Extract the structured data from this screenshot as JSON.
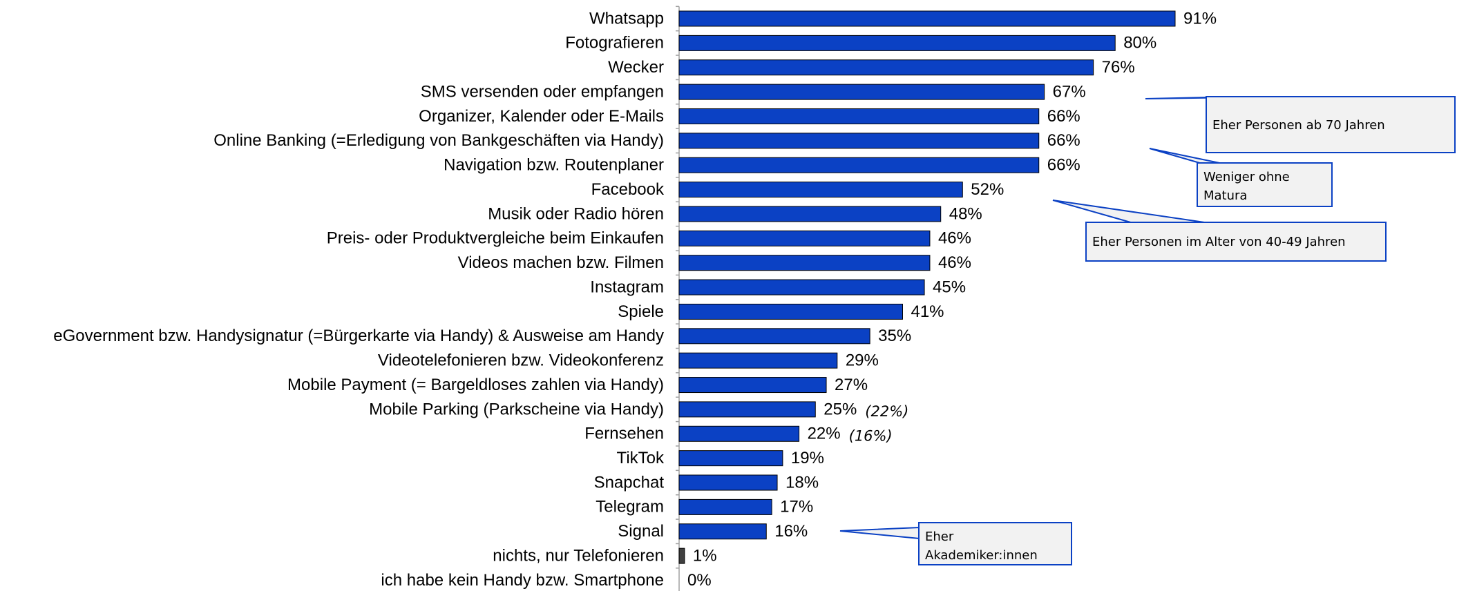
{
  "chart_data": {
    "type": "barh",
    "categories": [
      "Whatsapp",
      "Fotografieren",
      "Wecker",
      "SMS versenden oder empfangen",
      "Organizer, Kalender oder E-Mails",
      "Online Banking (=Erledigung von Bankgeschäften via Handy)",
      "Navigation bzw. Routenplaner",
      "Facebook",
      "Musik oder Radio hören",
      "Preis- oder Produktvergleiche beim Einkaufen",
      "Videos machen bzw. Filmen",
      "Instagram",
      "Spiele",
      "eGovernment bzw. Handysignatur (=Bürgerkarte via Handy) & Ausweise am Handy",
      "Videotelefonieren bzw. Videokonferenz",
      "Mobile Payment (= Bargeldloses zahlen via Handy)",
      "Mobile Parking (Parkscheine via Handy)",
      "Fernsehen",
      "TikTok",
      "Snapchat",
      "Telegram",
      "Signal",
      "nichts, nur Telefonieren",
      "ich habe kein Handy bzw. Smartphone"
    ],
    "values": [
      91,
      80,
      76,
      67,
      66,
      66,
      66,
      52,
      48,
      46,
      46,
      45,
      41,
      35,
      29,
      27,
      25,
      22,
      19,
      18,
      17,
      16,
      1,
      0
    ],
    "value_labels": [
      "91%",
      "80%",
      "76%",
      "67%",
      "66%",
      "66%",
      "66%",
      "52%",
      "48%",
      "46%",
      "46%",
      "45%",
      "41%",
      "35%",
      "29%",
      "27%",
      "25%",
      "22%",
      "19%",
      "18%",
      "17%",
      "16%",
      "1%",
      "0%"
    ],
    "colors": [
      "#0b41c4",
      "#0b41c4",
      "#0b41c4",
      "#0b41c4",
      "#0b41c4",
      "#0b41c4",
      "#0b41c4",
      "#0b41c4",
      "#0b41c4",
      "#0b41c4",
      "#0b41c4",
      "#0b41c4",
      "#0b41c4",
      "#0b41c4",
      "#0b41c4",
      "#0b41c4",
      "#0b41c4",
      "#0b41c4",
      "#0b41c4",
      "#0b41c4",
      "#0b41c4",
      "#0b41c4",
      "#404040",
      "#404040"
    ],
    "xlim": [
      0,
      100
    ],
    "side_notes": [
      {
        "text": "(22%)"
      },
      {
        "text": "(16%)"
      }
    ],
    "callouts": [
      {
        "text": "Eher Personen ab 70 Jahren"
      },
      {
        "text": "Weniger ohne Matura"
      },
      {
        "text": "Eher Personen im Alter von 40-49 Jahren"
      },
      {
        "text": "Eher Akademiker:innen"
      }
    ]
  }
}
